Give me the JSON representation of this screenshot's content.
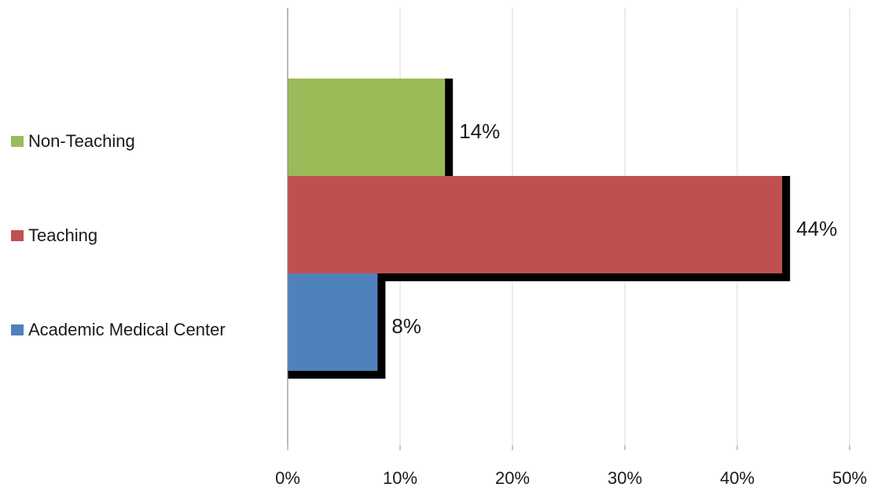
{
  "chart_data": {
    "type": "bar",
    "orientation": "horizontal",
    "title": "",
    "xlabel": "",
    "ylabel": "",
    "xlim": [
      0,
      50
    ],
    "x_ticks": [
      "0%",
      "10%",
      "20%",
      "30%",
      "40%",
      "50%"
    ],
    "grid": "vertical",
    "legend_position": "left",
    "series": [
      {
        "name": "Non-Teaching",
        "value": 14,
        "label": "14%",
        "color": "#9bbb59"
      },
      {
        "name": "Teaching",
        "value": 44,
        "label": "44%",
        "color": "#c0504d"
      },
      {
        "name": "Academic Medical Center",
        "value": 8,
        "label": "8%",
        "color": "#4f81bd"
      }
    ]
  }
}
